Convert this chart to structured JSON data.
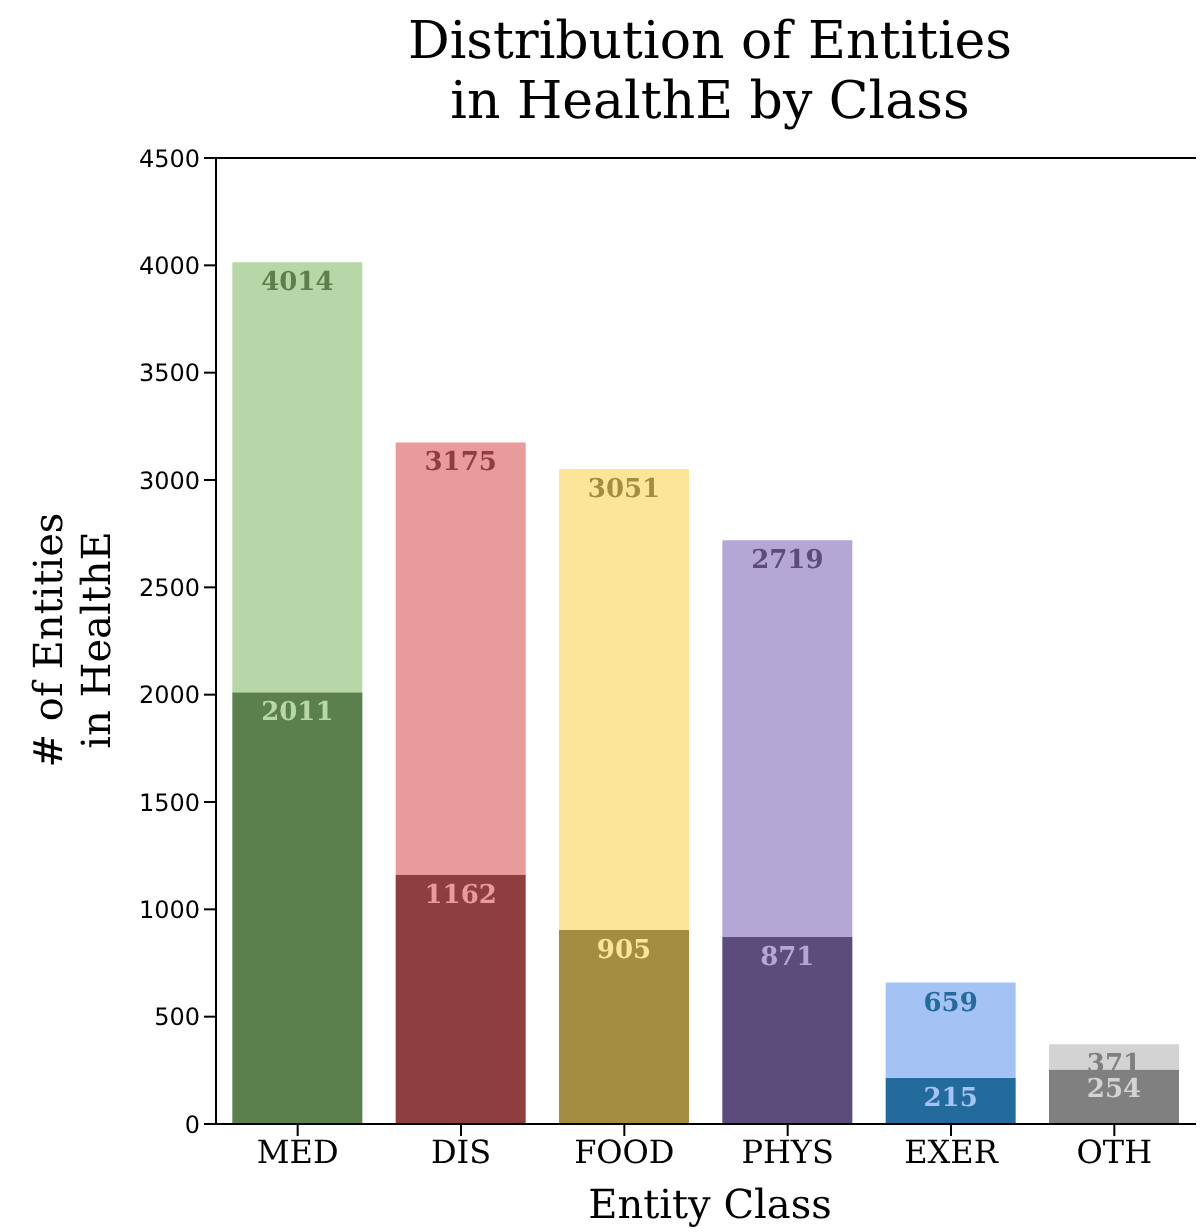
{
  "chart_data": {
    "type": "bar",
    "title": "Distribution of Entities\nin HealthE by Class",
    "xlabel": "Entity Class",
    "ylabel": "# of Entities\nin HealthE",
    "categories": [
      "MED",
      "DIS",
      "FOOD",
      "PHYS",
      "EXER",
      "OTH"
    ],
    "stacked": true,
    "ylim": [
      0,
      4500
    ],
    "yticks": [
      0,
      500,
      1000,
      1500,
      2000,
      2500,
      3000,
      3500,
      4000,
      4500
    ],
    "totals": [
      "4014",
      "3175",
      "3051",
      "2719",
      "659",
      "371"
    ],
    "series": [
      {
        "colors": [
          "#5b7f4d",
          "#8e3e3f",
          "#a58d3f",
          "#5b4c7b",
          "#236b9c",
          "#808080"
        ],
        "values": [
          2011,
          1162,
          905,
          871,
          215,
          254
        ],
        "value_labels": [
          "2011",
          "1162",
          "905",
          "871",
          "215",
          "254"
        ]
      },
      {
        "colors": [
          "#b7d7a8",
          "#e99a9a",
          "#fce597",
          "#b4a7d6",
          "#a4c2f4",
          "#d3d3d3"
        ],
        "values": [
          2003,
          2013,
          2146,
          1848,
          444,
          117
        ]
      }
    ]
  }
}
